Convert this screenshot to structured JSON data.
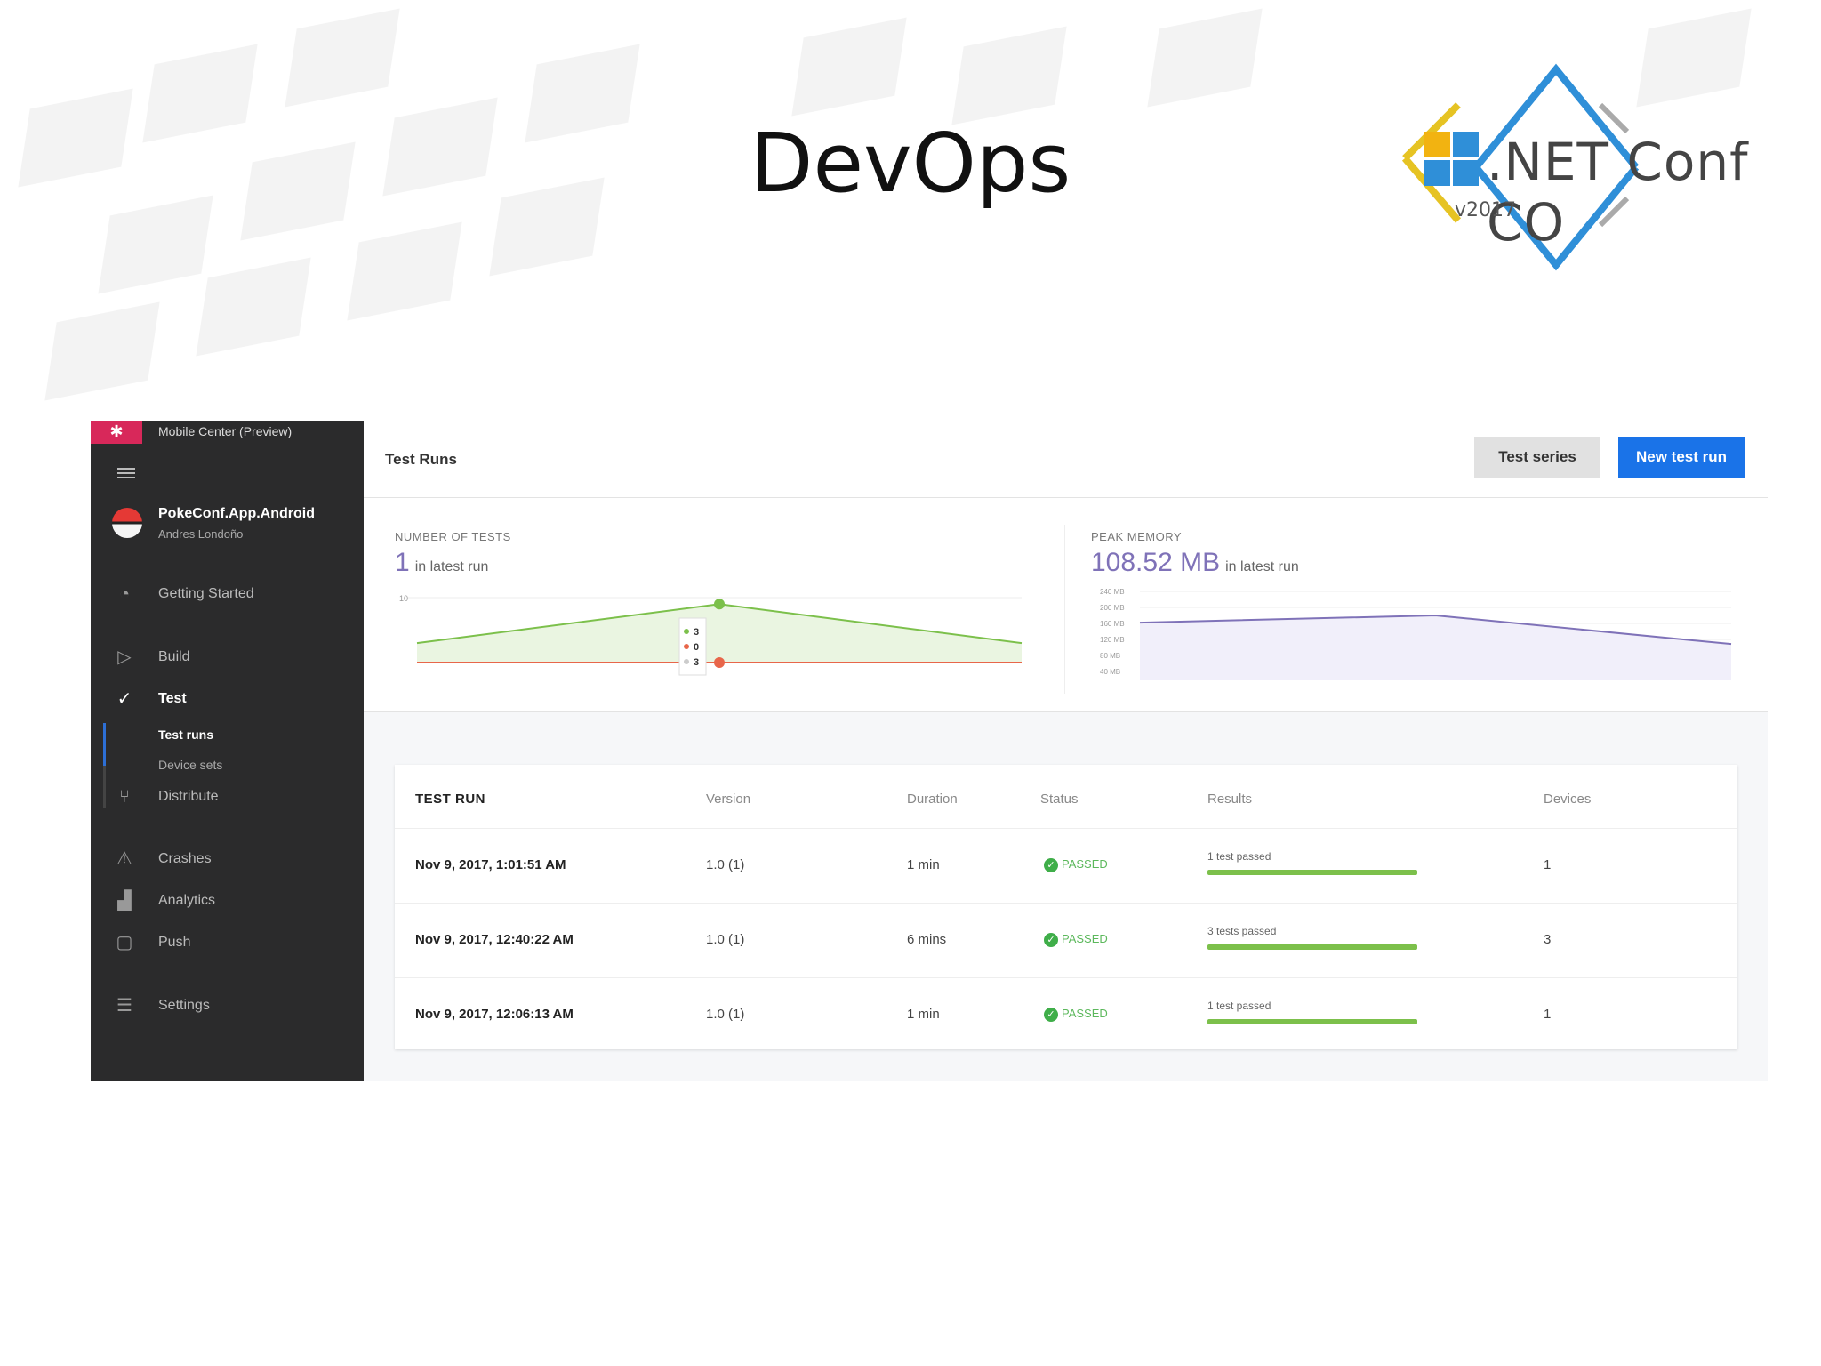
{
  "slide": {
    "title": "DevOps"
  },
  "logo": {
    "brand": ".NET Conf CO",
    "version": "v2017"
  },
  "sidebar": {
    "brand": "Mobile Center (Preview)",
    "app_name": "PokeConf.App.Android",
    "app_owner": "Andres Londoño",
    "items": [
      {
        "label": "Getting Started",
        "icon": "speedometer-icon"
      },
      {
        "label": "Build",
        "icon": "play-icon"
      },
      {
        "label": "Test",
        "icon": "check-circle-icon",
        "active": true
      },
      {
        "label": "Distribute",
        "icon": "distribute-icon"
      },
      {
        "label": "Crashes",
        "icon": "warning-icon"
      },
      {
        "label": "Analytics",
        "icon": "bar-chart-icon"
      },
      {
        "label": "Push",
        "icon": "push-icon"
      },
      {
        "label": "Settings",
        "icon": "sliders-icon"
      }
    ],
    "sub_items": [
      {
        "label": "Test runs",
        "active": true
      },
      {
        "label": "Device sets"
      }
    ]
  },
  "header": {
    "title": "Test Runs",
    "test_series_label": "Test series",
    "new_test_run_label": "New test run"
  },
  "charts": {
    "tests": {
      "label": "NUMBER OF TESTS",
      "value": "1",
      "suffix": "in latest run",
      "ytick": "10",
      "tooltip": [
        "3",
        "0",
        "3"
      ]
    },
    "memory": {
      "label": "PEAK MEMORY",
      "value": "108.52 MB",
      "suffix": "in latest run",
      "yticks": [
        "240 MB",
        "200 MB",
        "160 MB",
        "120 MB",
        "80 MB",
        "40 MB"
      ]
    }
  },
  "chart_data": [
    {
      "type": "line",
      "title": "NUMBER OF TESTS",
      "x": [
        "Nov 9, 2017, 12:06:13 AM",
        "Nov 9, 2017, 12:40:22 AM",
        "Nov 9, 2017, 1:01:51 AM"
      ],
      "series": [
        {
          "values": [
            1,
            3,
            1
          ],
          "color": "#7cc04b"
        },
        {
          "values": [
            0,
            0,
            0
          ],
          "color": "#e8664a"
        }
      ],
      "ylim": [
        0,
        10
      ]
    },
    {
      "type": "area",
      "title": "PEAK MEMORY",
      "x": [
        "Nov 9, 2017, 12:06:13 AM",
        "Nov 9, 2017, 12:40:22 AM",
        "Nov 9, 2017, 1:01:51 AM"
      ],
      "series": [
        {
          "values": [
            162,
            180,
            108.52
          ],
          "color": "#7f72b8"
        }
      ],
      "ylim": [
        40,
        240
      ]
    }
  ],
  "table": {
    "headers": [
      "TEST RUN",
      "Version",
      "Duration",
      "Status",
      "Results",
      "Devices"
    ],
    "rows": [
      {
        "run": "Nov 9, 2017, 1:01:51 AM",
        "version": "1.0 (1)",
        "duration": "1 min",
        "status": "PASSED",
        "results": "1 test passed",
        "pass_ratio": 1,
        "devices": "1"
      },
      {
        "run": "Nov 9, 2017, 12:40:22 AM",
        "version": "1.0 (1)",
        "duration": "6 mins",
        "status": "PASSED",
        "results": "3 tests passed",
        "pass_ratio": 1,
        "devices": "3"
      },
      {
        "run": "Nov 9, 2017, 12:06:13 AM",
        "version": "1.0 (1)",
        "duration": "1 min",
        "status": "PASSED",
        "results": "1 test passed",
        "pass_ratio": 1,
        "devices": "1"
      }
    ]
  },
  "colors": {
    "accent": "#1a73e8",
    "brand": "#d8285a",
    "pass": "#3fae49",
    "memory": "#7f72b8"
  }
}
